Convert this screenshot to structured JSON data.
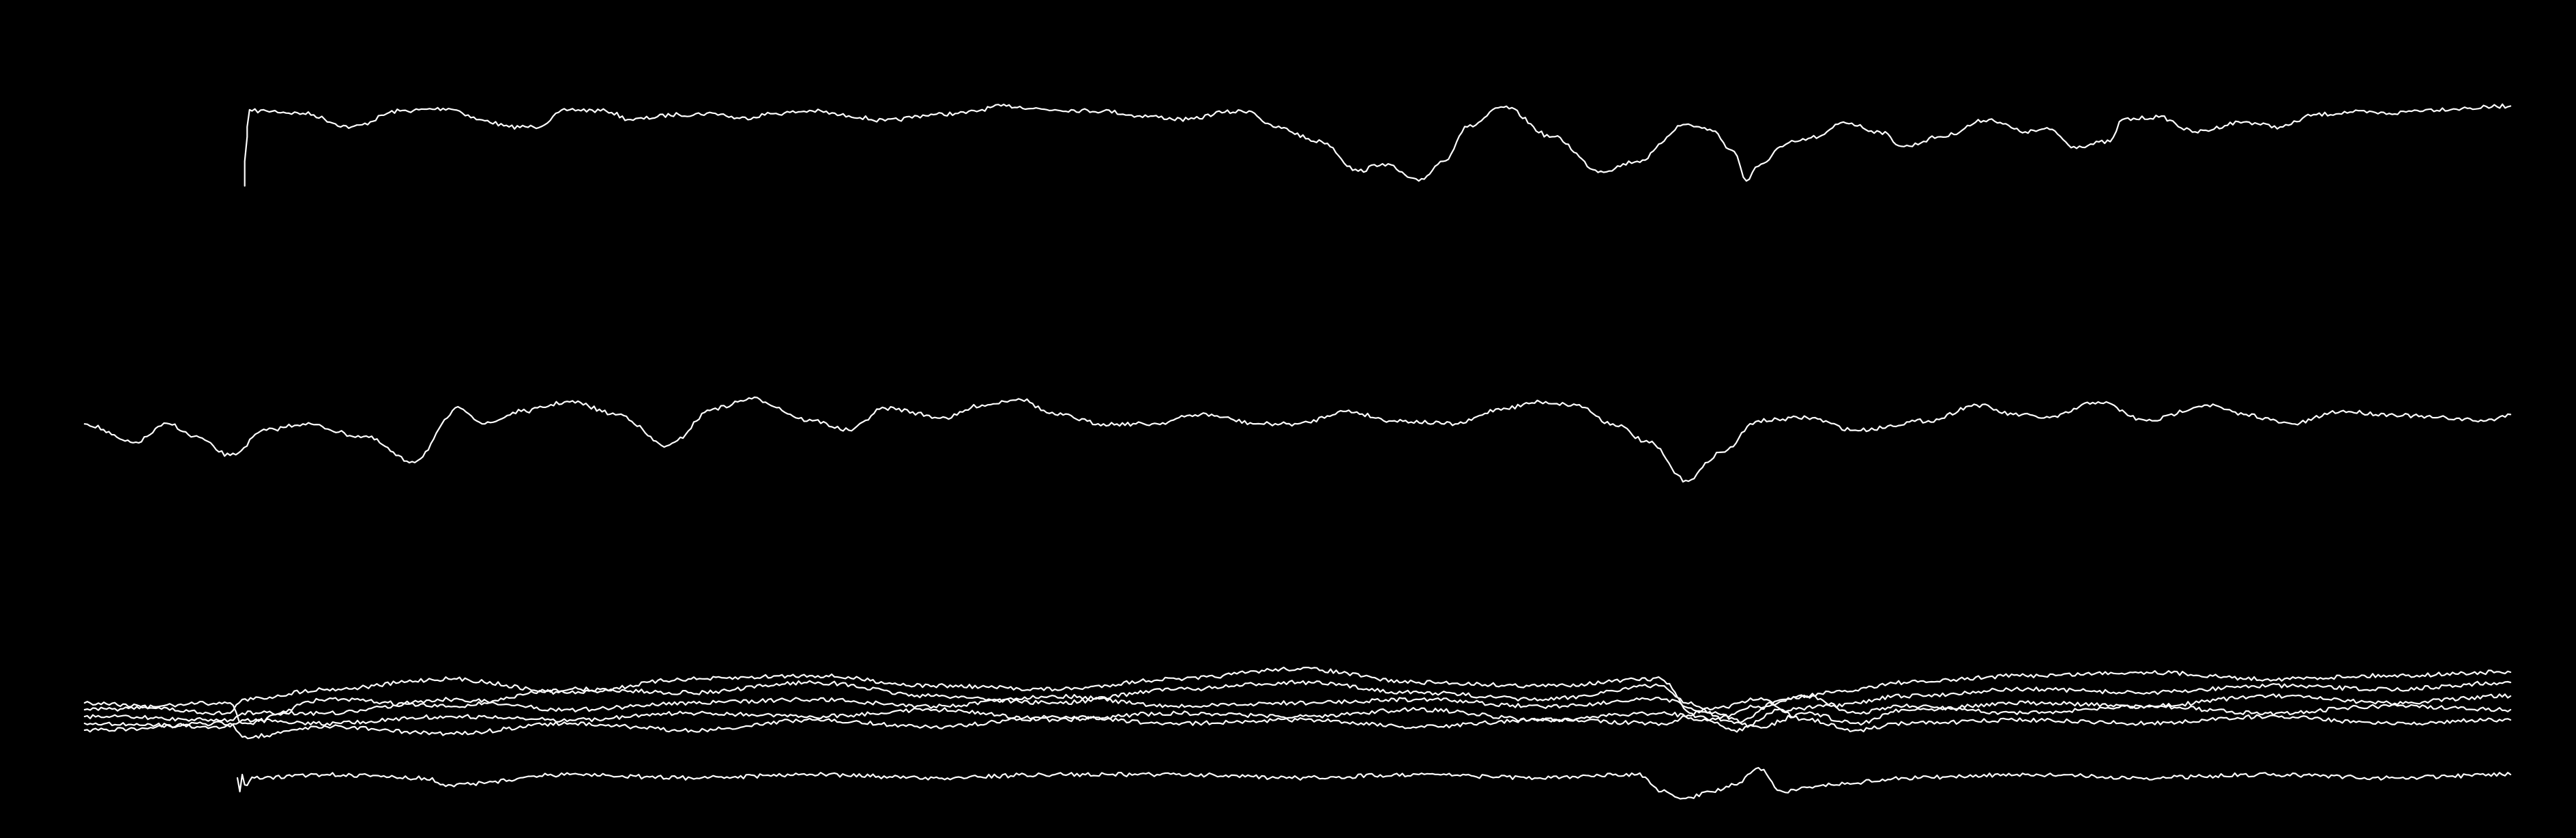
{
  "background_color": "#000000",
  "trace_color": "#ffffff",
  "chart_data": [
    {
      "type": "line",
      "grid": false,
      "legend": "none",
      "xlim": [
        0,
        1
      ],
      "ylim": [
        0,
        1
      ],
      "series": [
        {
          "x": [
            0.066,
            0.066,
            0.067,
            0.067,
            0.068,
            0.069,
            0.075,
            0.09,
            0.11,
            0.13,
            0.15,
            0.165,
            0.175,
            0.185,
            0.2,
            0.215,
            0.225,
            0.245,
            0.26,
            0.27,
            0.285,
            0.3,
            0.315,
            0.33,
            0.35,
            0.36,
            0.38,
            0.4,
            0.42,
            0.435,
            0.455,
            0.47,
            0.48,
            0.49,
            0.51,
            0.525,
            0.535,
            0.55,
            0.56,
            0.57,
            0.585,
            0.605,
            0.625,
            0.64,
            0.66,
            0.67,
            0.68,
            0.685,
            0.69,
            0.7,
            0.705,
            0.715,
            0.725,
            0.74,
            0.75,
            0.765,
            0.785,
            0.8,
            0.81,
            0.82,
            0.835,
            0.84,
            0.855,
            0.87,
            0.89,
            0.905,
            0.92,
            0.935,
            0.95,
            0.965,
            0.98,
            1.0
          ],
          "y": [
            0.66,
            0.76,
            0.86,
            0.9,
            0.97,
            0.965,
            0.965,
            0.955,
            0.9,
            0.965,
            0.975,
            0.925,
            0.9,
            0.9,
            0.97,
            0.965,
            0.93,
            0.95,
            0.955,
            0.935,
            0.955,
            0.965,
            0.945,
            0.925,
            0.95,
            0.955,
            0.985,
            0.97,
            0.965,
            0.945,
            0.93,
            0.96,
            0.965,
            0.9,
            0.84,
            0.72,
            0.75,
            0.68,
            0.76,
            0.9,
            0.98,
            0.86,
            0.72,
            0.76,
            0.91,
            0.89,
            0.8,
            0.68,
            0.74,
            0.82,
            0.84,
            0.86,
            0.92,
            0.88,
            0.82,
            0.86,
            0.93,
            0.88,
            0.89,
            0.82,
            0.84,
            0.93,
            0.94,
            0.88,
            0.92,
            0.9,
            0.95,
            0.96,
            0.955,
            0.97,
            0.975,
            0.985
          ]
        }
      ]
    },
    {
      "type": "line",
      "grid": false,
      "legend": "none",
      "xlim": [
        0,
        1
      ],
      "ylim": [
        0,
        1
      ],
      "series": [
        {
          "x": [
            0.0,
            0.02,
            0.035,
            0.045,
            0.06,
            0.075,
            0.09,
            0.115,
            0.135,
            0.155,
            0.165,
            0.18,
            0.2,
            0.22,
            0.24,
            0.26,
            0.275,
            0.3,
            0.315,
            0.33,
            0.355,
            0.37,
            0.385,
            0.4,
            0.42,
            0.44,
            0.46,
            0.485,
            0.5,
            0.52,
            0.54,
            0.565,
            0.585,
            0.6,
            0.615,
            0.63,
            0.645,
            0.66,
            0.675,
            0.69,
            0.71,
            0.73,
            0.76,
            0.78,
            0.795,
            0.81,
            0.83,
            0.85,
            0.875,
            0.89,
            0.91,
            0.93,
            0.95,
            0.97,
            0.99,
            1.0
          ],
          "y": [
            0.56,
            0.44,
            0.56,
            0.48,
            0.36,
            0.52,
            0.56,
            0.48,
            0.32,
            0.66,
            0.56,
            0.64,
            0.7,
            0.62,
            0.42,
            0.66,
            0.72,
            0.58,
            0.52,
            0.66,
            0.6,
            0.68,
            0.72,
            0.62,
            0.56,
            0.56,
            0.62,
            0.56,
            0.56,
            0.64,
            0.58,
            0.56,
            0.66,
            0.7,
            0.68,
            0.56,
            0.44,
            0.2,
            0.38,
            0.58,
            0.6,
            0.52,
            0.58,
            0.68,
            0.62,
            0.6,
            0.7,
            0.58,
            0.68,
            0.62,
            0.56,
            0.64,
            0.62,
            0.6,
            0.58,
            0.62
          ]
        }
      ]
    },
    {
      "type": "line",
      "grid": false,
      "legend": "none",
      "xlim": [
        0,
        1
      ],
      "ylim": [
        0,
        1
      ],
      "series": [
        {
          "x": [
            0.0,
            0.06,
            0.065,
            0.1,
            0.15,
            0.2,
            0.25,
            0.3,
            0.35,
            0.4,
            0.45,
            0.5,
            0.55,
            0.6,
            0.65,
            0.66,
            0.68,
            0.7,
            0.72,
            0.75,
            0.8,
            0.85,
            0.9,
            0.95,
            1.0
          ],
          "y": [
            0.72,
            0.66,
            0.74,
            0.8,
            0.86,
            0.78,
            0.86,
            0.88,
            0.82,
            0.8,
            0.86,
            0.92,
            0.84,
            0.82,
            0.86,
            0.72,
            0.6,
            0.74,
            0.78,
            0.84,
            0.88,
            0.9,
            0.86,
            0.88,
            0.9
          ]
        },
        {
          "x": [
            0.0,
            0.06,
            0.065,
            0.1,
            0.15,
            0.2,
            0.25,
            0.3,
            0.35,
            0.4,
            0.45,
            0.5,
            0.55,
            0.6,
            0.65,
            0.665,
            0.68,
            0.7,
            0.72,
            0.75,
            0.8,
            0.85,
            0.9,
            0.95,
            1.0
          ],
          "y": [
            0.68,
            0.72,
            0.6,
            0.74,
            0.7,
            0.8,
            0.78,
            0.84,
            0.76,
            0.72,
            0.8,
            0.84,
            0.78,
            0.74,
            0.82,
            0.64,
            0.56,
            0.68,
            0.7,
            0.76,
            0.8,
            0.78,
            0.82,
            0.8,
            0.84
          ]
        },
        {
          "x": [
            0.0,
            0.06,
            0.065,
            0.1,
            0.15,
            0.2,
            0.25,
            0.3,
            0.35,
            0.4,
            0.45,
            0.5,
            0.55,
            0.6,
            0.65,
            0.67,
            0.69,
            0.71,
            0.73,
            0.75,
            0.8,
            0.85,
            0.9,
            0.95,
            1.0
          ],
          "y": [
            0.64,
            0.62,
            0.66,
            0.66,
            0.74,
            0.68,
            0.72,
            0.74,
            0.7,
            0.76,
            0.7,
            0.72,
            0.74,
            0.7,
            0.74,
            0.66,
            0.58,
            0.66,
            0.6,
            0.68,
            0.72,
            0.7,
            0.76,
            0.72,
            0.76
          ]
        },
        {
          "x": [
            0.0,
            0.06,
            0.065,
            0.1,
            0.15,
            0.2,
            0.25,
            0.3,
            0.35,
            0.4,
            0.45,
            0.5,
            0.55,
            0.6,
            0.65,
            0.67,
            0.69,
            0.71,
            0.73,
            0.75,
            0.8,
            0.85,
            0.9,
            0.95,
            1.0
          ],
          "y": [
            0.6,
            0.58,
            0.62,
            0.6,
            0.64,
            0.62,
            0.66,
            0.64,
            0.68,
            0.62,
            0.66,
            0.64,
            0.68,
            0.62,
            0.66,
            0.62,
            0.7,
            0.76,
            0.66,
            0.7,
            0.66,
            0.7,
            0.66,
            0.7,
            0.68
          ]
        },
        {
          "x": [
            0.0,
            0.06,
            0.065,
            0.1,
            0.15,
            0.2,
            0.25,
            0.3,
            0.35,
            0.4,
            0.45,
            0.5,
            0.55,
            0.6,
            0.65,
            0.67,
            0.69,
            0.71,
            0.73,
            0.75,
            0.8,
            0.85,
            0.9,
            0.95,
            1.0
          ],
          "y": [
            0.56,
            0.6,
            0.52,
            0.58,
            0.54,
            0.6,
            0.56,
            0.62,
            0.58,
            0.64,
            0.6,
            0.62,
            0.58,
            0.62,
            0.6,
            0.68,
            0.74,
            0.62,
            0.56,
            0.6,
            0.62,
            0.6,
            0.64,
            0.6,
            0.62
          ]
        },
        {
          "x": [
            0.063,
            0.064,
            0.065,
            0.066,
            0.07,
            0.1,
            0.14,
            0.15,
            0.2,
            0.25,
            0.3,
            0.35,
            0.4,
            0.45,
            0.5,
            0.55,
            0.6,
            0.64,
            0.65,
            0.66,
            0.67,
            0.68,
            0.69,
            0.7,
            0.72,
            0.75,
            0.8,
            0.85,
            0.9,
            0.95,
            1.0
          ],
          "y": [
            0.28,
            0.2,
            0.3,
            0.24,
            0.28,
            0.3,
            0.28,
            0.24,
            0.3,
            0.28,
            0.3,
            0.28,
            0.3,
            0.3,
            0.28,
            0.3,
            0.28,
            0.3,
            0.2,
            0.16,
            0.2,
            0.24,
            0.34,
            0.2,
            0.24,
            0.28,
            0.3,
            0.28,
            0.3,
            0.28,
            0.3
          ]
        }
      ]
    }
  ]
}
